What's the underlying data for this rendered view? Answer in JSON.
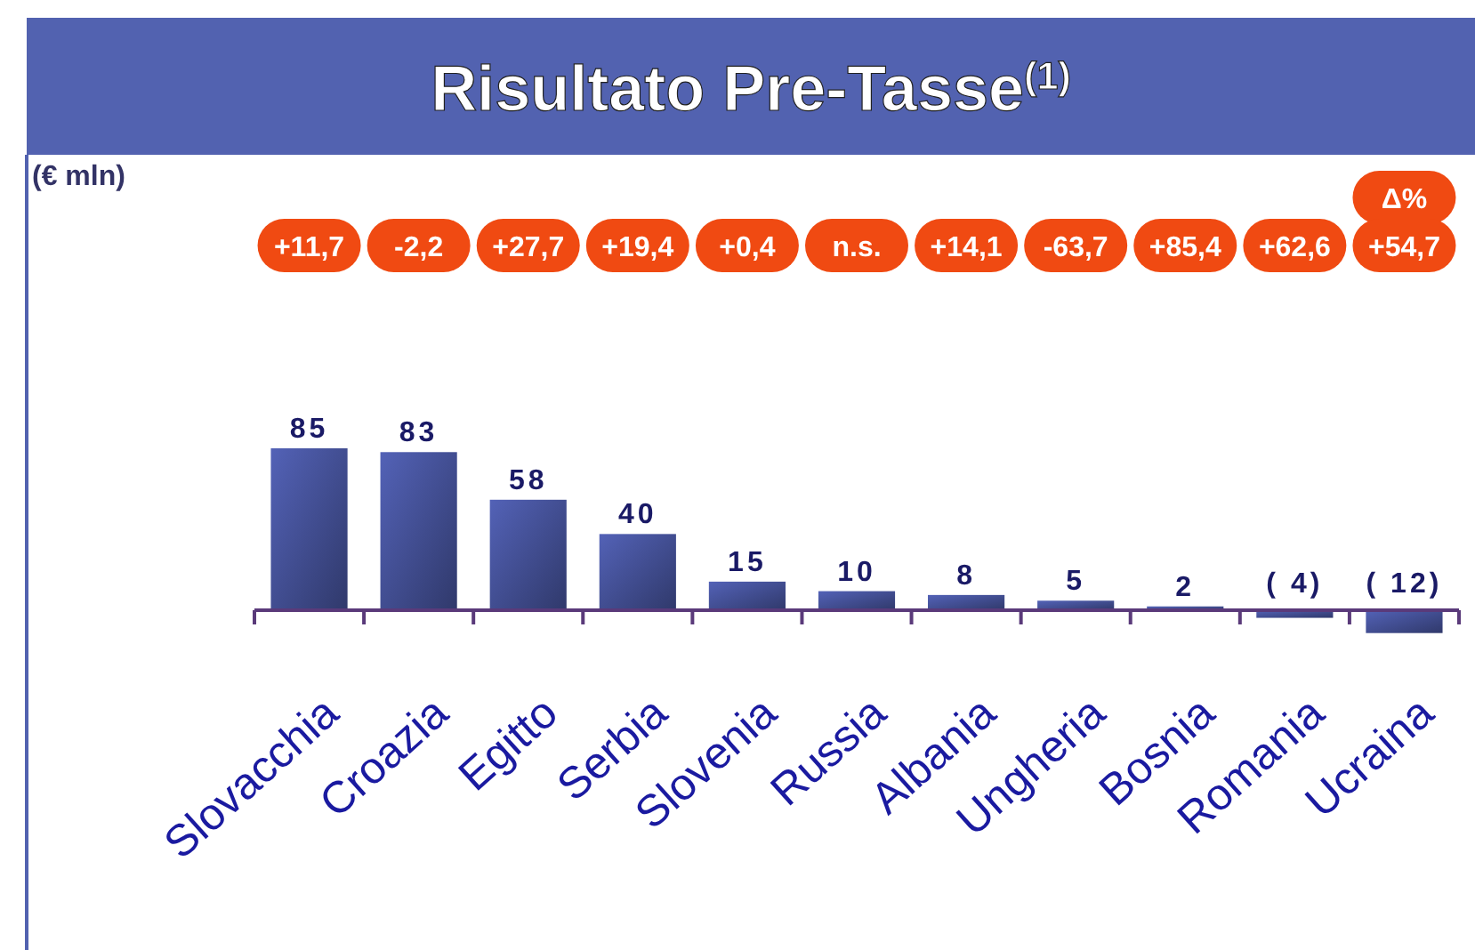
{
  "chart_data": {
    "type": "bar",
    "title": "Risultato Pre-Tasse$^{(1)}$",
    "categories": [
      "Slovacchia",
      "Croazia",
      "Egitto",
      "Serbia",
      "Slovenia",
      "Russia",
      "Albania",
      "Ungheria",
      "Bosnia",
      "Romania",
      "Ucraina"
    ],
    "values": [
      85,
      83,
      58,
      40,
      15,
      10,
      8,
      5,
      2,
      -4,
      -12
    ],
    "value_labels": [
      "85",
      "83",
      "58",
      "40",
      "15",
      "10",
      "8",
      "5",
      "2",
      "( 4)",
      "( 12)"
    ],
    "color": "#3c4785",
    "annotations": [
      "(€ mln)",
      "Δ%",
      "+11,7",
      "-2,2",
      "+27,7",
      "+19,4",
      "+0,4",
      "n.s.",
      "+14,1",
      "-63,7",
      "+85,4",
      "+62,6",
      "+54,7"
    ]
  }
}
